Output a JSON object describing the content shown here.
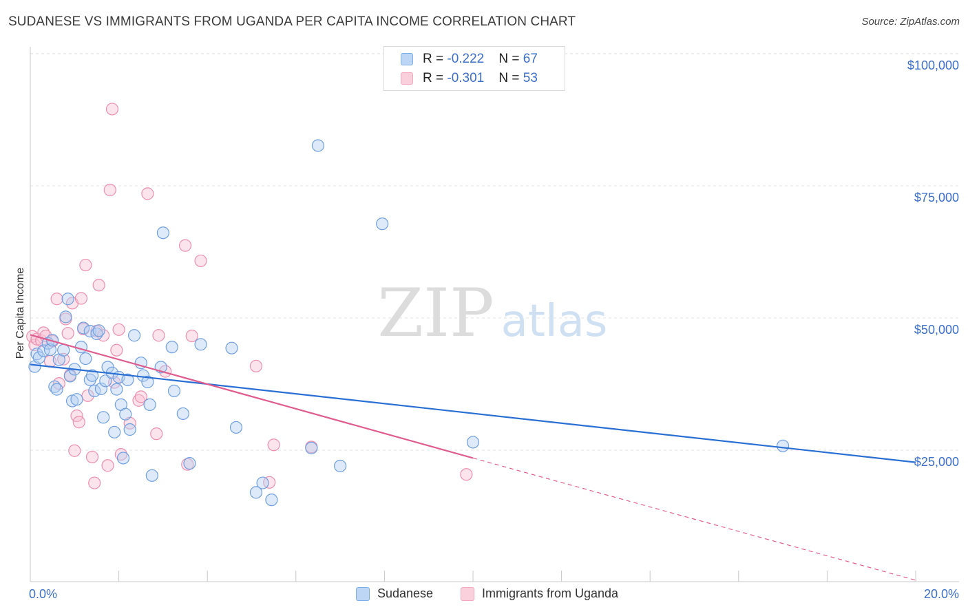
{
  "title": "SUDANESE VS IMMIGRANTS FROM UGANDA PER CAPITA INCOME CORRELATION CHART",
  "source": "Source: ZipAtlas.com",
  "watermark": {
    "zip": "ZIP",
    "atlas": "atlas"
  },
  "legend_top": [
    {
      "r_label": "R = ",
      "r_value": "-0.222",
      "n_label": "N = ",
      "n_value": "67"
    },
    {
      "r_label": "R = ",
      "r_value": "-0.301",
      "n_label": "N = ",
      "n_value": "53"
    }
  ],
  "chart_data": {
    "type": "scatter",
    "title": "SUDANESE VS IMMIGRANTS FROM UGANDA PER CAPITA INCOME CORRELATION CHART",
    "xlabel": "",
    "ylabel": "Per Capita Income",
    "xlim": [
      0,
      20
    ],
    "ylim": [
      0,
      105000
    ],
    "x_tick_labels": [
      "0.0%",
      "20.0%"
    ],
    "y_ticks": [
      25000,
      50000,
      75000,
      100000
    ],
    "y_tick_labels": [
      "$25,000",
      "$50,000",
      "$75,000",
      "$100,000"
    ],
    "grid": true,
    "legend_position": "top-center",
    "series": [
      {
        "name": "Sudanese",
        "color": "#7eaee8",
        "line_color": "#2a6fd4",
        "trend": {
          "x": [
            0,
            20
          ],
          "y": [
            41200,
            22700
          ]
        },
        "points": [
          [
            0.1,
            40800
          ],
          [
            0.15,
            43200
          ],
          [
            0.2,
            42500
          ],
          [
            0.3,
            43800
          ],
          [
            0.4,
            45200
          ],
          [
            0.45,
            44000
          ],
          [
            0.5,
            45800
          ],
          [
            0.55,
            37000
          ],
          [
            0.6,
            36500
          ],
          [
            0.65,
            42100
          ],
          [
            0.75,
            43900
          ],
          [
            0.8,
            50200
          ],
          [
            0.85,
            53600
          ],
          [
            0.9,
            39000
          ],
          [
            0.95,
            34300
          ],
          [
            1.0,
            40300
          ],
          [
            1.05,
            34600
          ],
          [
            1.15,
            44500
          ],
          [
            1.2,
            48100
          ],
          [
            1.25,
            42300
          ],
          [
            1.35,
            47500
          ],
          [
            1.35,
            38300
          ],
          [
            1.4,
            39100
          ],
          [
            1.45,
            36200
          ],
          [
            1.5,
            47000
          ],
          [
            1.55,
            47600
          ],
          [
            1.6,
            36600
          ],
          [
            1.65,
            31200
          ],
          [
            1.7,
            38100
          ],
          [
            1.75,
            40700
          ],
          [
            1.85,
            39600
          ],
          [
            1.9,
            28400
          ],
          [
            1.95,
            36500
          ],
          [
            2.0,
            38800
          ],
          [
            2.05,
            33600
          ],
          [
            2.1,
            23500
          ],
          [
            2.15,
            31800
          ],
          [
            2.2,
            38300
          ],
          [
            2.25,
            28900
          ],
          [
            2.35,
            46700
          ],
          [
            2.5,
            41500
          ],
          [
            2.55,
            39100
          ],
          [
            2.65,
            37900
          ],
          [
            2.7,
            33600
          ],
          [
            2.75,
            20200
          ],
          [
            2.95,
            40700
          ],
          [
            3.0,
            66100
          ],
          [
            3.2,
            44500
          ],
          [
            3.25,
            36200
          ],
          [
            3.45,
            31900
          ],
          [
            3.6,
            22500
          ],
          [
            3.85,
            45000
          ],
          [
            4.55,
            44300
          ],
          [
            4.65,
            29300
          ],
          [
            5.1,
            17000
          ],
          [
            5.25,
            18800
          ],
          [
            5.45,
            15600
          ],
          [
            6.35,
            25400
          ],
          [
            6.5,
            82600
          ],
          [
            7.0,
            22000
          ],
          [
            7.95,
            67800
          ],
          [
            10.0,
            26500
          ],
          [
            17.0,
            25800
          ]
        ]
      },
      {
        "name": "Immigrants from Uganda",
        "color": "#f4a8c0",
        "line_color": "#e05c8e",
        "trend": {
          "x": [
            0,
            10
          ],
          "y": [
            46800,
            23500
          ]
        },
        "trend_dashed": {
          "x": [
            10,
            20
          ],
          "y": [
            23500,
            400
          ]
        },
        "points": [
          [
            0.05,
            46500
          ],
          [
            0.1,
            44900
          ],
          [
            0.15,
            46000
          ],
          [
            0.25,
            45700
          ],
          [
            0.3,
            47200
          ],
          [
            0.35,
            46600
          ],
          [
            0.45,
            41800
          ],
          [
            0.5,
            45600
          ],
          [
            0.6,
            53600
          ],
          [
            0.65,
            37600
          ],
          [
            0.75,
            42200
          ],
          [
            0.8,
            49800
          ],
          [
            0.85,
            47100
          ],
          [
            0.9,
            39200
          ],
          [
            0.95,
            52800
          ],
          [
            1.0,
            24900
          ],
          [
            1.05,
            31500
          ],
          [
            1.1,
            30300
          ],
          [
            1.15,
            53700
          ],
          [
            1.2,
            47900
          ],
          [
            1.25,
            60000
          ],
          [
            1.3,
            35300
          ],
          [
            1.4,
            23700
          ],
          [
            1.45,
            18800
          ],
          [
            1.5,
            47500
          ],
          [
            1.55,
            56200
          ],
          [
            1.65,
            46700
          ],
          [
            1.75,
            22100
          ],
          [
            1.8,
            74200
          ],
          [
            1.85,
            89500
          ],
          [
            1.9,
            37800
          ],
          [
            1.95,
            43900
          ],
          [
            2.0,
            47800
          ],
          [
            2.05,
            24200
          ],
          [
            2.25,
            30100
          ],
          [
            2.45,
            34400
          ],
          [
            2.5,
            35100
          ],
          [
            2.65,
            73500
          ],
          [
            2.85,
            28100
          ],
          [
            2.9,
            46700
          ],
          [
            3.05,
            39900
          ],
          [
            3.5,
            63700
          ],
          [
            3.55,
            22300
          ],
          [
            3.65,
            46600
          ],
          [
            3.85,
            60800
          ],
          [
            5.1,
            40900
          ],
          [
            5.4,
            18900
          ],
          [
            5.5,
            26000
          ],
          [
            6.35,
            25600
          ],
          [
            9.85,
            20400
          ]
        ]
      }
    ]
  }
}
